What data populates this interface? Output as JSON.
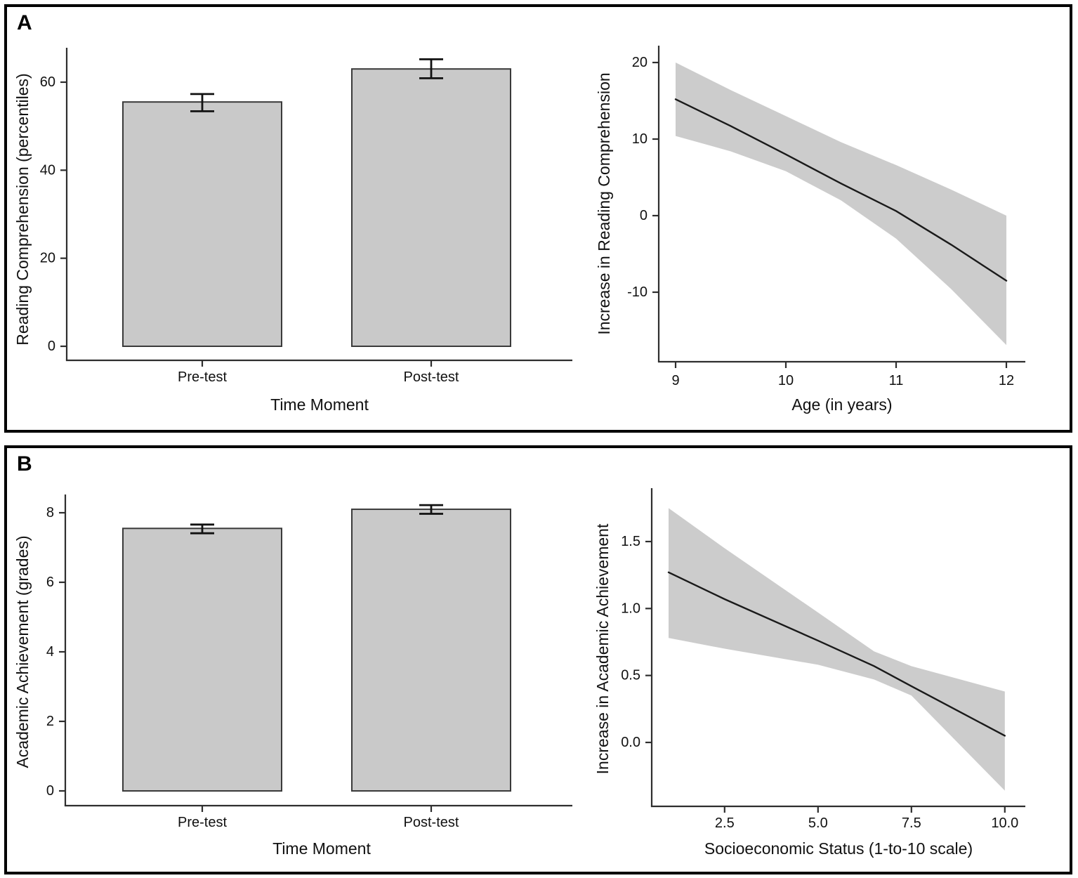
{
  "figure": {
    "panels": [
      {
        "label": "A"
      },
      {
        "label": "B"
      }
    ]
  },
  "colors": {
    "bar_fill": "#c9c9c9",
    "bar_stroke": "#3a3a3a",
    "band_fill": "#c9c9c9",
    "line_color": "#1a1a1a",
    "axis_color": "#2e2e2e",
    "error_color": "#111111",
    "text_color": "#111111"
  },
  "chart_data": [
    {
      "id": "reading-comprehension-bar",
      "panel": "A",
      "type": "bar",
      "categories": [
        "Pre-test",
        "Post-test"
      ],
      "values": [
        55.5,
        63.0
      ],
      "error_bars": [
        [
          53.4,
          57.3
        ],
        [
          60.9,
          65.2
        ]
      ],
      "xlabel": "Time Moment",
      "ylabel": "Reading Comprehension (percentiles)",
      "yticks": [
        0,
        20,
        40,
        60
      ],
      "ytick_labels": [
        "0",
        "20",
        "40",
        "60"
      ],
      "ylim": [
        0,
        68
      ],
      "grid": false,
      "legend": "none"
    },
    {
      "id": "reading-age-regression",
      "panel": "A",
      "type": "line",
      "xlabel": "Age (in years)",
      "ylabel": "Increase in Reading Comprehension",
      "xticks": [
        9,
        10,
        11,
        12
      ],
      "xtick_labels": [
        "9",
        "10",
        "11",
        "12"
      ],
      "yticks": [
        -10,
        0,
        10,
        20
      ],
      "ytick_labels": [
        "-10",
        "0",
        "10",
        "20"
      ],
      "xlim": [
        9,
        12
      ],
      "ylim": [
        -19,
        22
      ],
      "line": {
        "x": [
          9,
          9.5,
          10,
          10.5,
          11,
          11.5,
          12
        ],
        "y": [
          15.2,
          11.7,
          8.0,
          4.2,
          0.6,
          -3.8,
          -8.5
        ]
      },
      "band": {
        "x": [
          9,
          9.5,
          10,
          10.5,
          11,
          11.5,
          12
        ],
        "upper": [
          20.0,
          16.4,
          13.0,
          9.6,
          6.6,
          3.4,
          0.0
        ],
        "lower": [
          10.4,
          8.4,
          5.8,
          2.0,
          -3.0,
          -9.6,
          -16.9
        ]
      },
      "grid": false,
      "legend": "none"
    },
    {
      "id": "academic-achievement-bar",
      "panel": "B",
      "type": "bar",
      "categories": [
        "Pre-test",
        "Post-test"
      ],
      "values": [
        7.55,
        8.1
      ],
      "error_bars": [
        [
          7.41,
          7.66
        ],
        [
          7.97,
          8.22
        ]
      ],
      "xlabel": "Time Moment",
      "ylabel": "Academic Achievement (grades)",
      "yticks": [
        0,
        2,
        4,
        6,
        8
      ],
      "ytick_labels": [
        "0",
        "2",
        "4",
        "6",
        "8"
      ],
      "ylim": [
        0,
        8.6
      ],
      "grid": false,
      "legend": "none"
    },
    {
      "id": "achievement-ses-regression",
      "panel": "B",
      "type": "line",
      "xlabel": "Socioeconomic Status (1-to-10 scale)",
      "ylabel": "Increase in Academic Achievement",
      "xticks": [
        2.5,
        5.0,
        7.5,
        10.0
      ],
      "xtick_labels": [
        "2.5",
        "5.0",
        "7.5",
        "10.0"
      ],
      "yticks": [
        0.0,
        0.5,
        1.0,
        1.5
      ],
      "ytick_labels": [
        "0.0",
        "0.5",
        "1.0",
        "1.5"
      ],
      "xlim": [
        1,
        10
      ],
      "ylim": [
        -0.47,
        1.9
      ],
      "line": {
        "x": [
          1,
          2.5,
          5,
          6.5,
          7.5,
          10
        ],
        "y": [
          1.27,
          1.07,
          0.76,
          0.57,
          0.42,
          0.05
        ]
      },
      "band": {
        "x": [
          1,
          2.5,
          5,
          6.5,
          7.5,
          10
        ],
        "upper": [
          1.75,
          1.45,
          0.97,
          0.68,
          0.57,
          0.38
        ],
        "lower": [
          0.78,
          0.7,
          0.58,
          0.47,
          0.35,
          -0.36
        ]
      },
      "grid": false,
      "legend": "none"
    }
  ]
}
